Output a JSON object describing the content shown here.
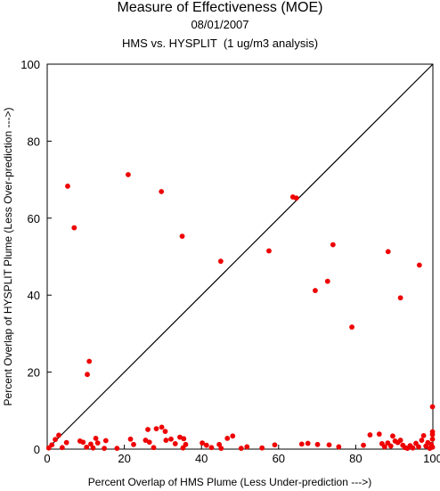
{
  "chart_data": {
    "type": "scatter",
    "title": "Measure of Effectiveness (MOE)",
    "subtitle": "08/01/2007",
    "subtitle2": "HMS vs. HYSPLIT  (1 ug/m3 analysis)",
    "xlabel": "Percent Overlap of HMS Plume (Less Under-prediction --->)",
    "ylabel": "Percent Overlap of HYSPLIT Plume (Less Over-prediction --->)",
    "xlim": [
      0,
      100
    ],
    "ylim": [
      0,
      100
    ],
    "x_ticks": [
      "0",
      "20",
      "40",
      "60",
      "80",
      "100"
    ],
    "y_ticks": [
      "0",
      "20",
      "40",
      "60",
      "80",
      "100"
    ],
    "reference_line": "y = x",
    "grid": false,
    "marker_color": "#ee0000",
    "points": [
      {
        "x": 5.3,
        "y": 68.3
      },
      {
        "x": 7.0,
        "y": 57.5
      },
      {
        "x": 21.0,
        "y": 71.3
      },
      {
        "x": 29.6,
        "y": 66.9
      },
      {
        "x": 35.0,
        "y": 55.3
      },
      {
        "x": 10.9,
        "y": 22.8
      },
      {
        "x": 10.4,
        "y": 19.4
      },
      {
        "x": 45.0,
        "y": 48.8
      },
      {
        "x": 63.7,
        "y": 65.5
      },
      {
        "x": 64.6,
        "y": 65.2
      },
      {
        "x": 57.5,
        "y": 51.5
      },
      {
        "x": 69.5,
        "y": 41.2
      },
      {
        "x": 72.7,
        "y": 43.6
      },
      {
        "x": 74.1,
        "y": 53.1
      },
      {
        "x": 79.0,
        "y": 31.7
      },
      {
        "x": 88.4,
        "y": 51.3
      },
      {
        "x": 91.6,
        "y": 39.3
      },
      {
        "x": 96.5,
        "y": 47.8
      },
      {
        "x": 0.4,
        "y": 0.3
      },
      {
        "x": 1.2,
        "y": 1.1
      },
      {
        "x": 2.1,
        "y": 2.5
      },
      {
        "x": 3.0,
        "y": 3.6
      },
      {
        "x": 3.9,
        "y": 0.4
      },
      {
        "x": 5.0,
        "y": 1.7
      },
      {
        "x": 8.5,
        "y": 2.1
      },
      {
        "x": 9.3,
        "y": 1.8
      },
      {
        "x": 10.2,
        "y": 0.5
      },
      {
        "x": 11.3,
        "y": 1.3
      },
      {
        "x": 11.9,
        "y": 0.3
      },
      {
        "x": 12.6,
        "y": 2.8
      },
      {
        "x": 13.1,
        "y": 1.6
      },
      {
        "x": 14.8,
        "y": 0.2
      },
      {
        "x": 15.2,
        "y": 2.2
      },
      {
        "x": 18.1,
        "y": 0.2
      },
      {
        "x": 21.6,
        "y": 2.6
      },
      {
        "x": 22.4,
        "y": 1.2
      },
      {
        "x": 25.5,
        "y": 2.3
      },
      {
        "x": 26.1,
        "y": 5.1
      },
      {
        "x": 26.5,
        "y": 1.8
      },
      {
        "x": 27.6,
        "y": 0.4
      },
      {
        "x": 28.3,
        "y": 5.3
      },
      {
        "x": 29.7,
        "y": 5.7
      },
      {
        "x": 30.6,
        "y": 4.6
      },
      {
        "x": 30.8,
        "y": 2.3
      },
      {
        "x": 32.1,
        "y": 2.6
      },
      {
        "x": 33.2,
        "y": 1.4
      },
      {
        "x": 34.4,
        "y": 3.1
      },
      {
        "x": 35.4,
        "y": 2.7
      },
      {
        "x": 35.9,
        "y": 1.2
      },
      {
        "x": 35.2,
        "y": 0.3
      },
      {
        "x": 40.2,
        "y": 1.6
      },
      {
        "x": 41.3,
        "y": 1.0
      },
      {
        "x": 42.6,
        "y": 0.4
      },
      {
        "x": 44.6,
        "y": 1.2
      },
      {
        "x": 45.1,
        "y": 0.2
      },
      {
        "x": 46.7,
        "y": 2.8
      },
      {
        "x": 48.1,
        "y": 3.4
      },
      {
        "x": 50.3,
        "y": 0.2
      },
      {
        "x": 51.8,
        "y": 0.6
      },
      {
        "x": 55.7,
        "y": 0.3
      },
      {
        "x": 59.0,
        "y": 1.1
      },
      {
        "x": 66.0,
        "y": 1.3
      },
      {
        "x": 67.6,
        "y": 1.5
      },
      {
        "x": 70.1,
        "y": 1.2
      },
      {
        "x": 73.1,
        "y": 1.1
      },
      {
        "x": 75.6,
        "y": 0.6
      },
      {
        "x": 82.0,
        "y": 1.0
      },
      {
        "x": 83.7,
        "y": 3.7
      },
      {
        "x": 86.1,
        "y": 3.9
      },
      {
        "x": 86.8,
        "y": 1.4
      },
      {
        "x": 87.5,
        "y": 0.6
      },
      {
        "x": 88.3,
        "y": 1.6
      },
      {
        "x": 89.1,
        "y": 0.8
      },
      {
        "x": 89.6,
        "y": 3.4
      },
      {
        "x": 90.2,
        "y": 2.1
      },
      {
        "x": 90.9,
        "y": 1.7
      },
      {
        "x": 91.6,
        "y": 2.3
      },
      {
        "x": 92.2,
        "y": 1.0
      },
      {
        "x": 92.8,
        "y": 0.4
      },
      {
        "x": 93.4,
        "y": 0.2
      },
      {
        "x": 94.1,
        "y": 0.9
      },
      {
        "x": 94.8,
        "y": 0.3
      },
      {
        "x": 95.6,
        "y": 1.5
      },
      {
        "x": 96.3,
        "y": 0.6
      },
      {
        "x": 97.1,
        "y": 2.3
      },
      {
        "x": 97.6,
        "y": 3.5
      },
      {
        "x": 98.2,
        "y": 0.8
      },
      {
        "x": 98.7,
        "y": 1.7
      },
      {
        "x": 99.2,
        "y": 0.2
      },
      {
        "x": 99.6,
        "y": 1.2
      },
      {
        "x": 99.9,
        "y": 2.6
      },
      {
        "x": 99.9,
        "y": 3.8
      },
      {
        "x": 99.9,
        "y": 4.5
      },
      {
        "x": 99.9,
        "y": 0.5
      },
      {
        "x": 99.9,
        "y": 11.0
      }
    ]
  }
}
